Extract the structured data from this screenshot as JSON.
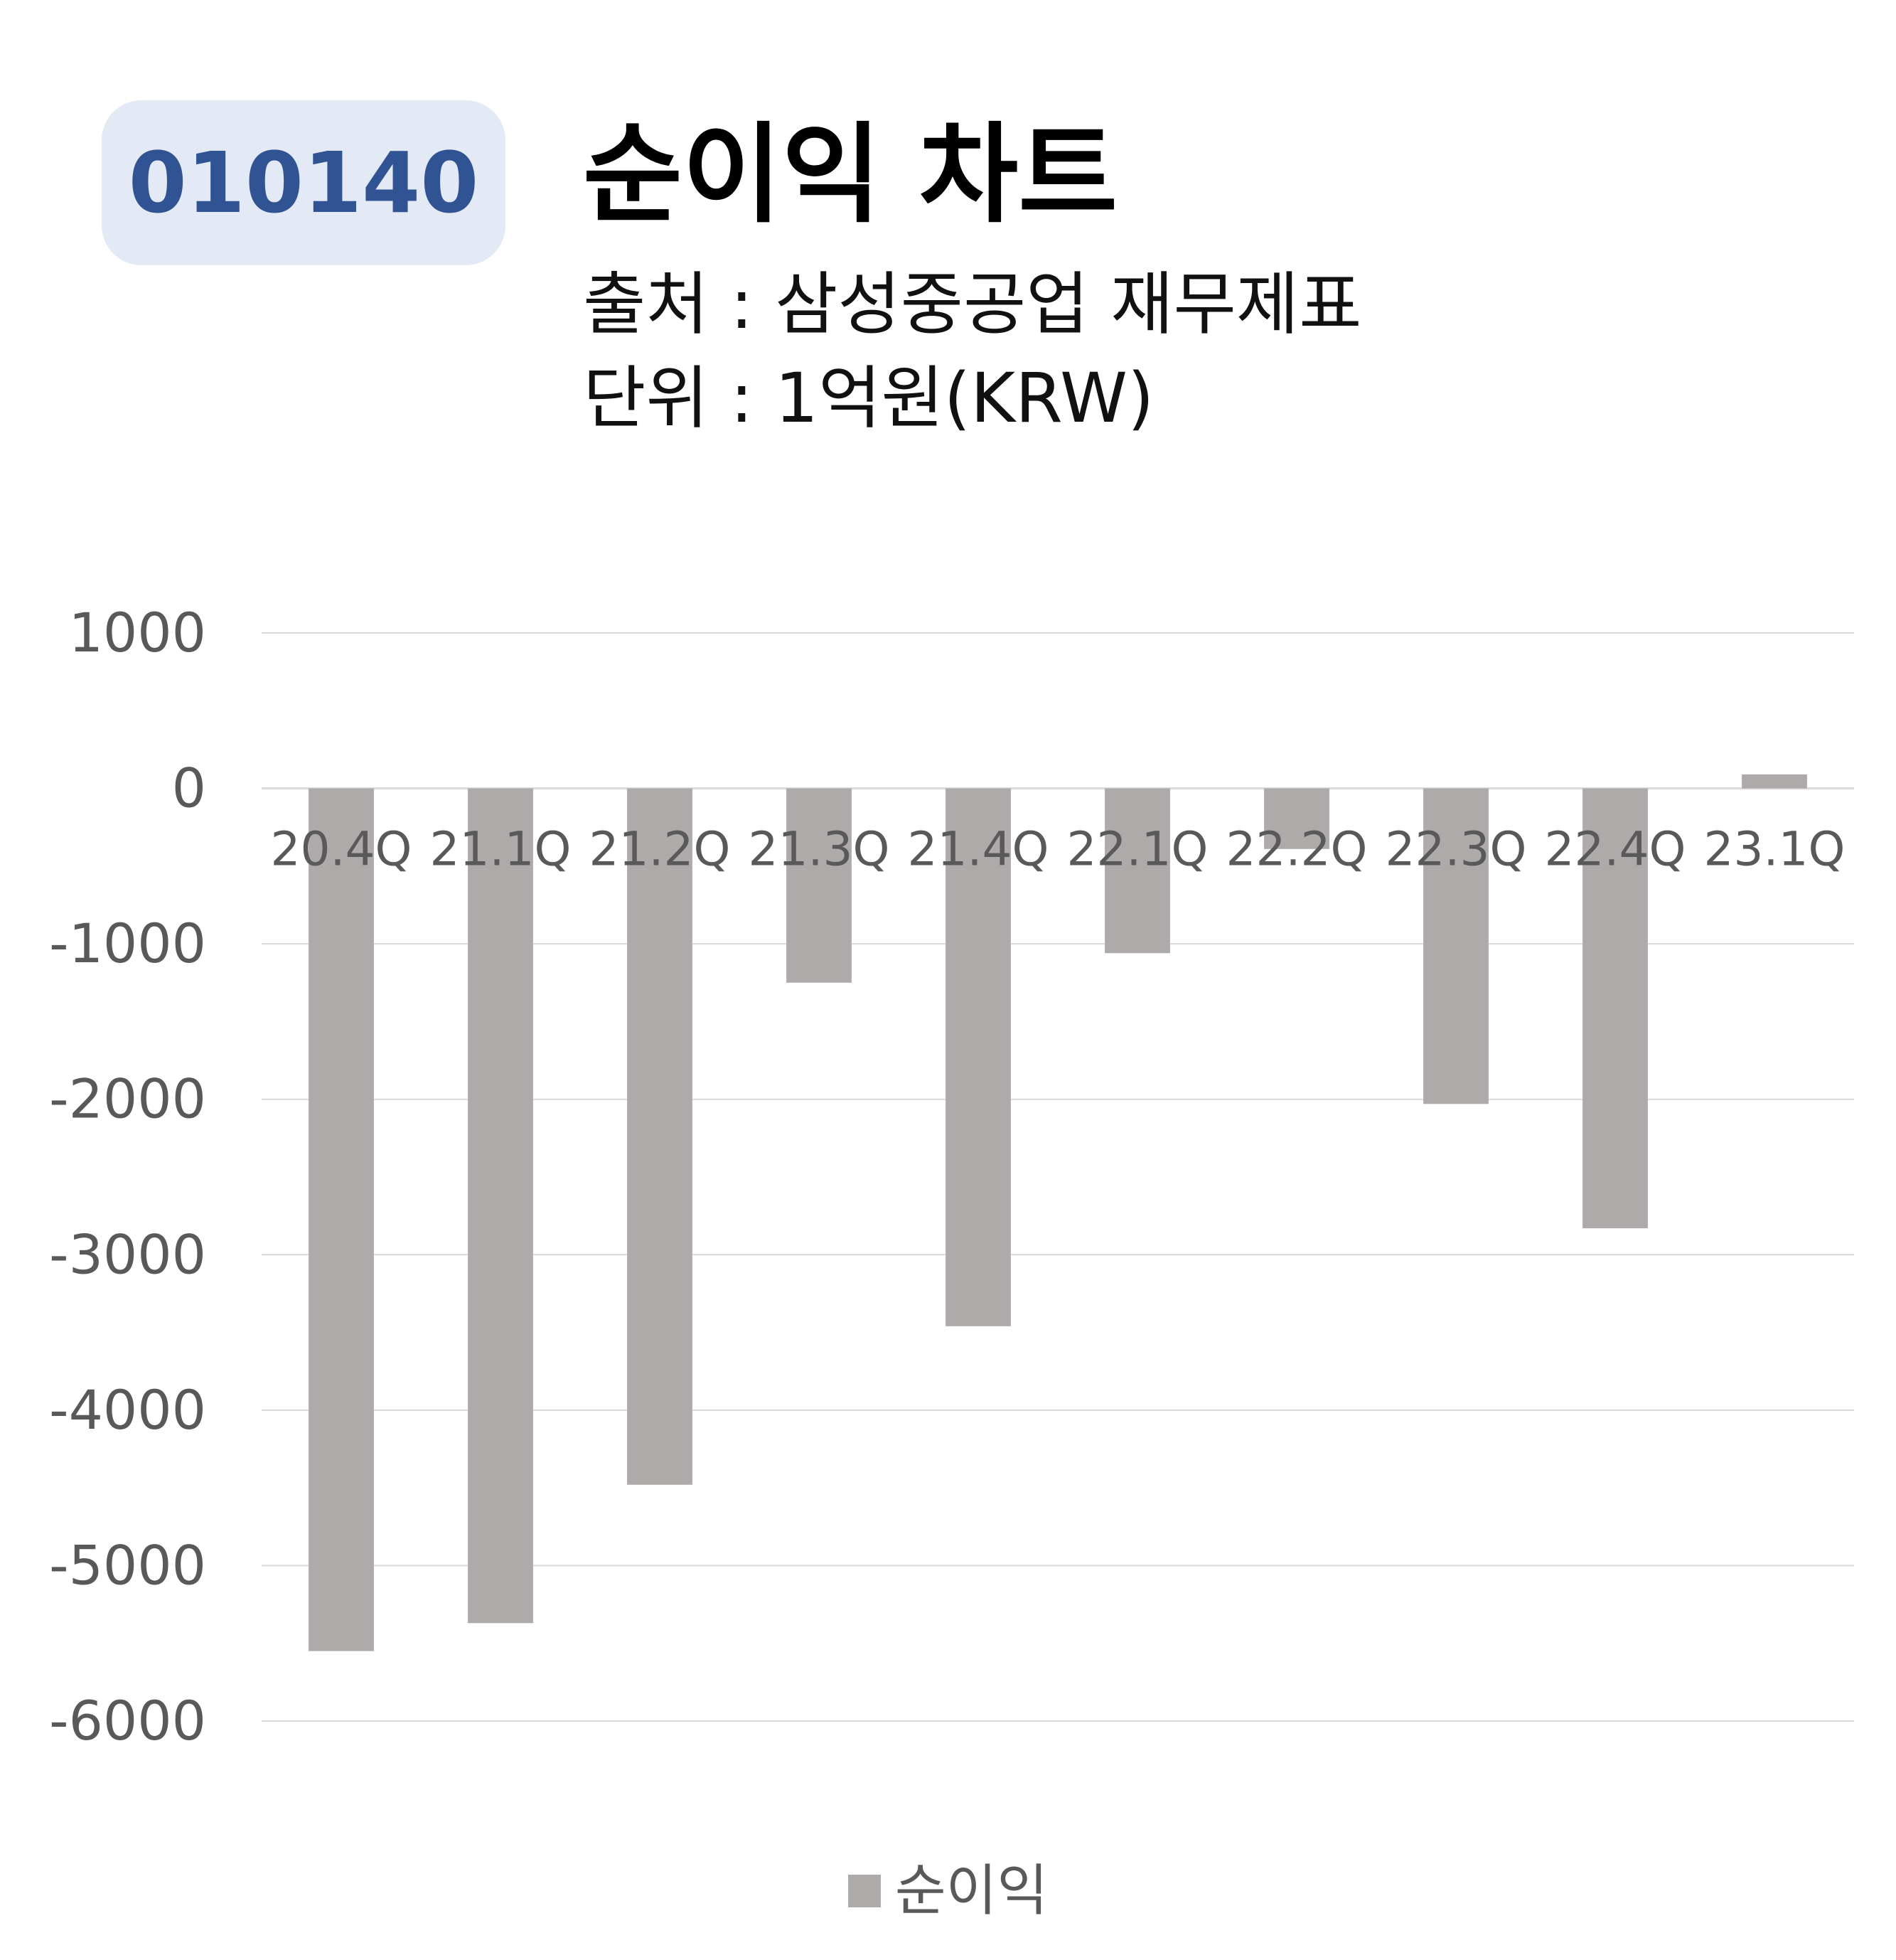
{
  "header": {
    "code": "010140",
    "title": "순이익 차트",
    "source": "출처 : 삼성중공업 재무제표",
    "unit": "단위 : 1억원(KRW)"
  },
  "colors": {
    "bar": "#aeaaaa",
    "badge_bg": "#e3e9f5",
    "badge_text": "#2f5393",
    "grid": "#d9d9d9",
    "tick_text": "#595959"
  },
  "chart_data": {
    "type": "bar",
    "categories": [
      "20.4Q",
      "21.1Q",
      "21.2Q",
      "21.3Q",
      "21.4Q",
      "22.1Q",
      "22.2Q",
      "22.3Q",
      "22.4Q",
      "23.1Q"
    ],
    "series": [
      {
        "name": "순이익",
        "values": [
          -5550,
          -5370,
          -4480,
          -1250,
          -3460,
          -1060,
          -390,
          -2030,
          -2830,
          90
        ]
      }
    ],
    "ylim": [
      -6000,
      1000
    ],
    "yticks": [
      1000,
      0,
      -1000,
      -2000,
      -3000,
      -4000,
      -5000,
      -6000
    ],
    "grid": true,
    "legend_position": "bottom"
  }
}
